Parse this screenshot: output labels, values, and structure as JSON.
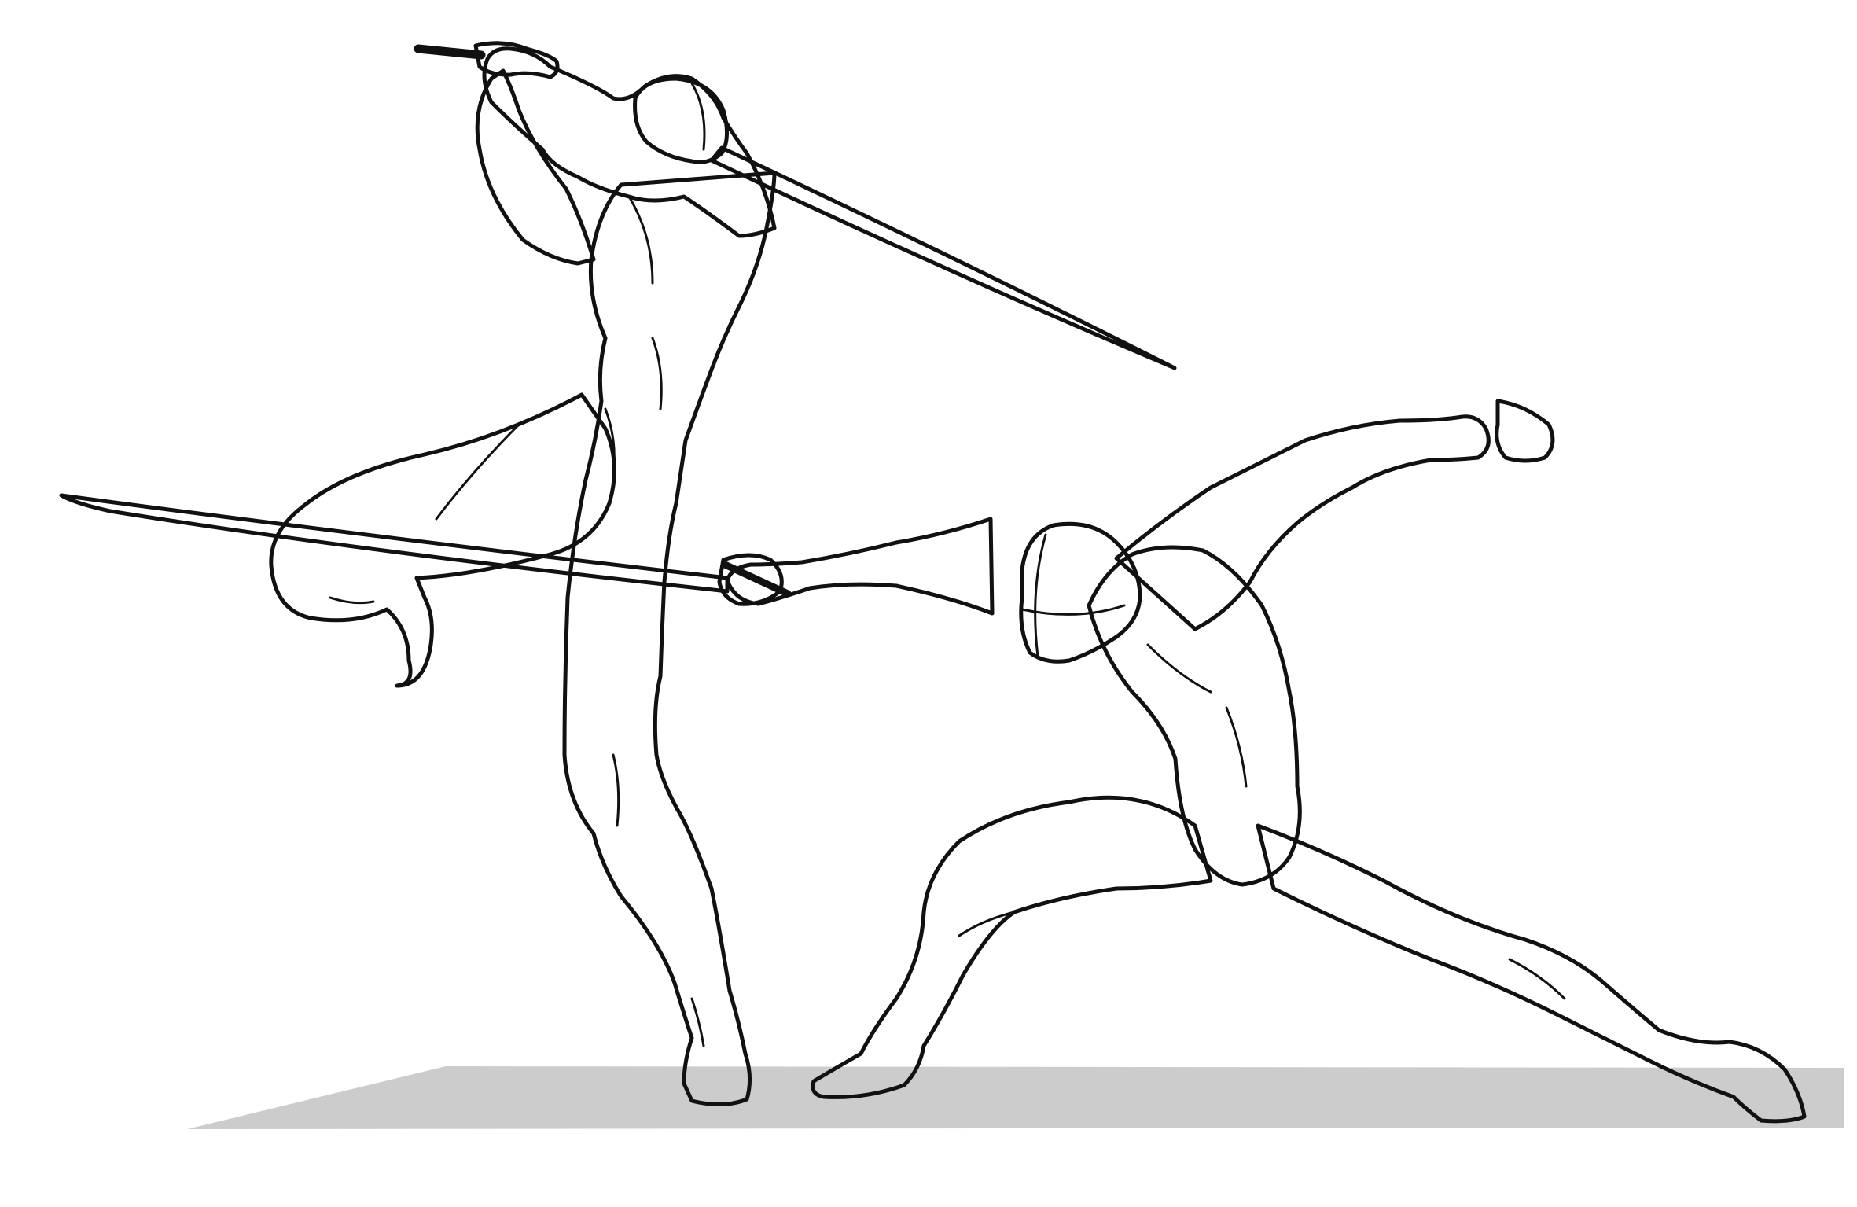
{
  "colors": {
    "background": "#ffffff",
    "line": "#111111",
    "fill": "#ffffff",
    "floor": "#cccccc"
  }
}
